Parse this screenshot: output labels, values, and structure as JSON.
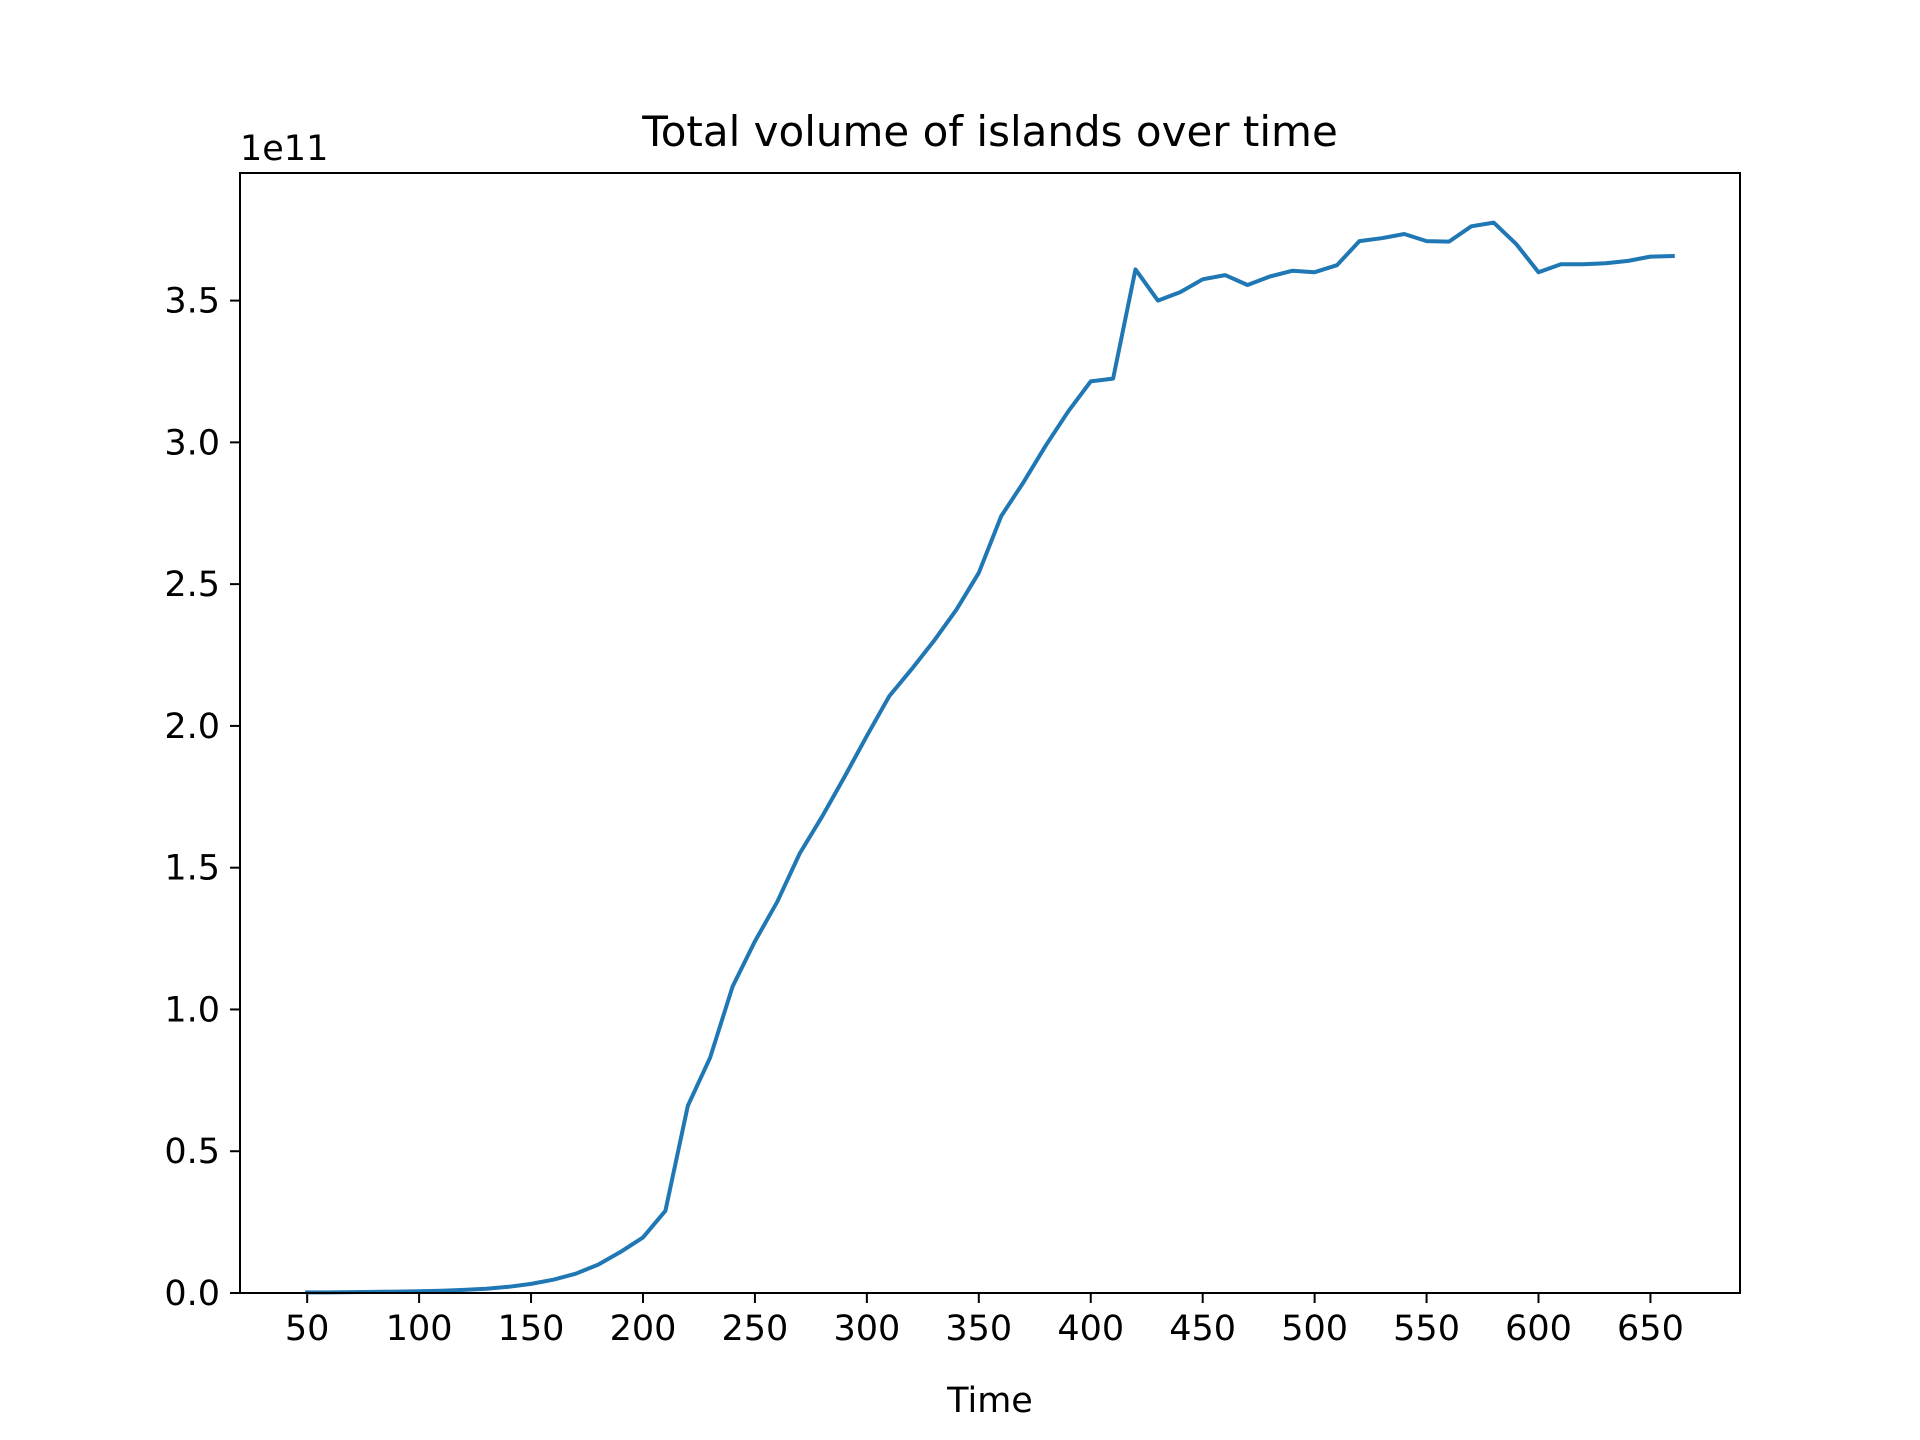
{
  "chart_data": {
    "type": "line",
    "title": "Total volume of islands over time",
    "xlabel": "Time",
    "ylabel": "",
    "y_offset_label": "1e11",
    "xlim": [
      20,
      690
    ],
    "ylim": [
      0,
      3.95
    ],
    "x_ticks": [
      50,
      100,
      150,
      200,
      250,
      300,
      350,
      400,
      450,
      500,
      550,
      600,
      650
    ],
    "x_tick_labels": [
      "50",
      "100",
      "150",
      "200",
      "250",
      "300",
      "350",
      "400",
      "450",
      "500",
      "550",
      "600",
      "650"
    ],
    "y_ticks": [
      0.0,
      0.5,
      1.0,
      1.5,
      2.0,
      2.5,
      3.0,
      3.5
    ],
    "y_tick_labels": [
      "0.0",
      "0.5",
      "1.0",
      "1.5",
      "2.0",
      "2.5",
      "3.0",
      "3.5"
    ],
    "grid": false,
    "legend": "none",
    "series": [
      {
        "color": "#1f77b4",
        "x": [
          50,
          60,
          70,
          80,
          90,
          100,
          110,
          120,
          130,
          140,
          150,
          160,
          170,
          180,
          190,
          200,
          210,
          220,
          230,
          240,
          250,
          260,
          270,
          280,
          290,
          300,
          310,
          320,
          330,
          340,
          350,
          360,
          370,
          380,
          390,
          400,
          410,
          420,
          430,
          440,
          450,
          460,
          470,
          480,
          490,
          500,
          510,
          520,
          530,
          540,
          550,
          560,
          570,
          580,
          590,
          600,
          610,
          620,
          630,
          640,
          650,
          660
        ],
        "values": [
          0.002,
          0.002,
          0.003,
          0.004,
          0.005,
          0.006,
          0.008,
          0.011,
          0.015,
          0.022,
          0.032,
          0.047,
          0.068,
          0.1,
          0.145,
          0.196,
          0.29,
          0.66,
          0.83,
          1.08,
          1.24,
          1.38,
          1.55,
          1.68,
          1.82,
          1.965,
          2.105,
          2.2,
          2.3,
          2.41,
          2.54,
          2.74,
          2.86,
          2.99,
          3.11,
          3.215,
          3.225,
          3.61,
          3.5,
          3.53,
          3.575,
          3.59,
          3.555,
          3.585,
          3.605,
          3.6,
          3.625,
          3.71,
          3.72,
          3.735,
          3.71,
          3.708,
          3.762,
          3.775,
          3.7,
          3.6,
          3.628,
          3.628,
          3.632,
          3.64,
          3.655,
          3.657
        ]
      }
    ]
  }
}
